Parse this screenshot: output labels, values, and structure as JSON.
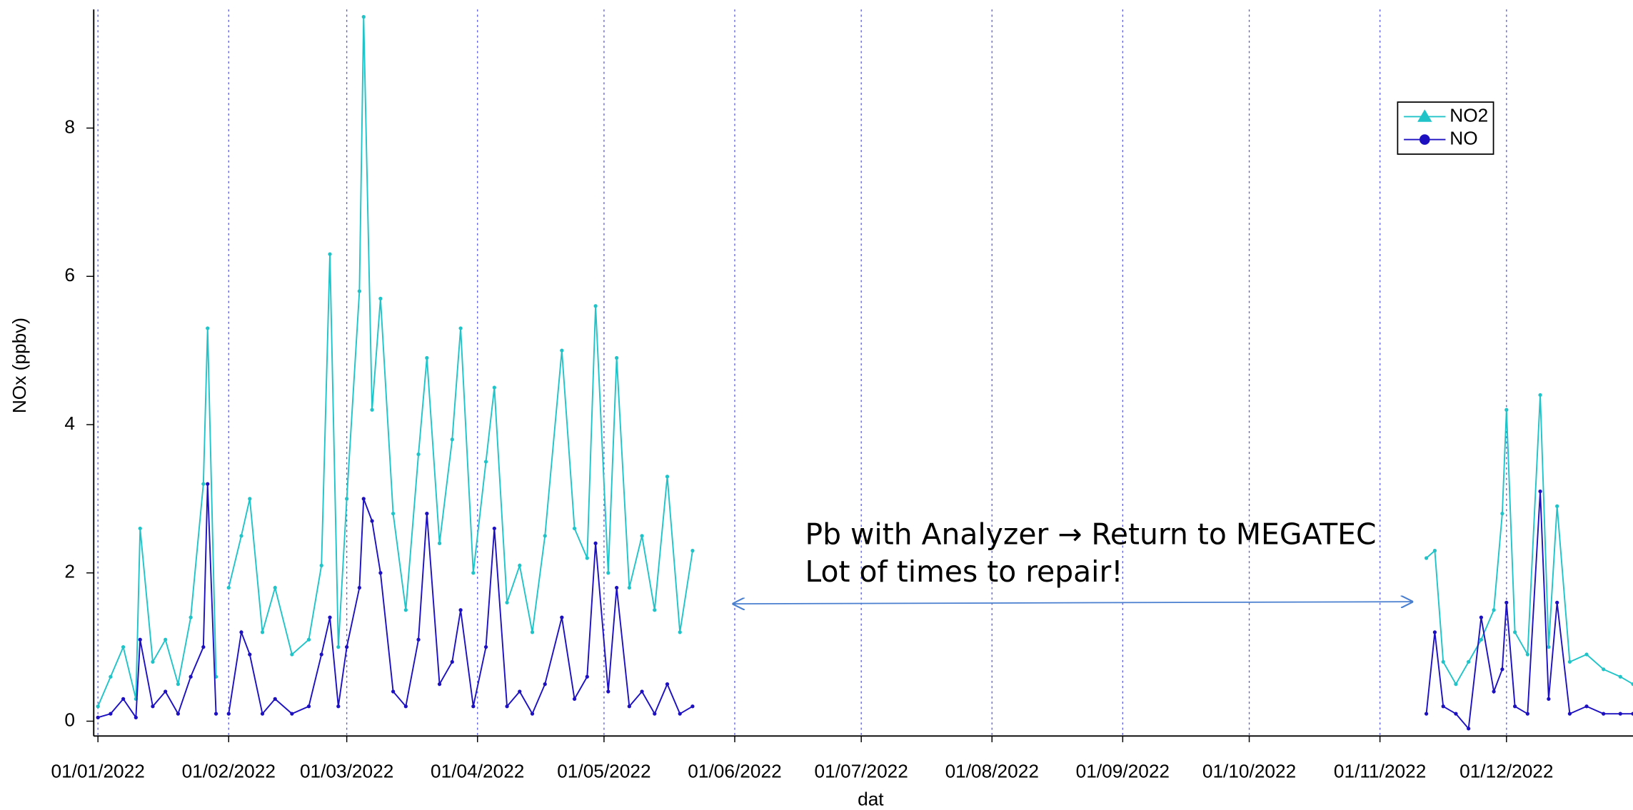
{
  "chart_data": {
    "type": "line",
    "xlabel": "dat",
    "ylabel": "NOx (ppbv)",
    "annotations": [
      "Pb with Analyzer → Return to MEGATEC",
      "Lot of times to repair!"
    ],
    "x": [
      "2022-01-01",
      "2022-01-04",
      "2022-01-07",
      "2022-01-10",
      "2022-01-11",
      "2022-01-14",
      "2022-01-17",
      "2022-01-20",
      "2022-01-23",
      "2022-01-26",
      "2022-01-27",
      "2022-01-29",
      "2022-01-31",
      "2022-02-01",
      "2022-02-04",
      "2022-02-06",
      "2022-02-09",
      "2022-02-12",
      "2022-02-16",
      "2022-02-20",
      "2022-02-23",
      "2022-02-25",
      "2022-02-27",
      "2022-03-01",
      "2022-03-04",
      "2022-03-05",
      "2022-03-07",
      "2022-03-09",
      "2022-03-12",
      "2022-03-15",
      "2022-03-18",
      "2022-03-20",
      "2022-03-23",
      "2022-03-26",
      "2022-03-28",
      "2022-03-31",
      "2022-04-03",
      "2022-04-05",
      "2022-04-08",
      "2022-04-11",
      "2022-04-14",
      "2022-04-17",
      "2022-04-21",
      "2022-04-24",
      "2022-04-27",
      "2022-04-29",
      "2022-05-02",
      "2022-05-04",
      "2022-05-07",
      "2022-05-10",
      "2022-05-13",
      "2022-05-16",
      "2022-05-19",
      "2022-05-22",
      "2022-05-23",
      "2022-11-12",
      "2022-11-14",
      "2022-11-16",
      "2022-11-19",
      "2022-11-22",
      "2022-11-25",
      "2022-11-28",
      "2022-11-30",
      "2022-12-01",
      "2022-12-03",
      "2022-12-06",
      "2022-12-09",
      "2022-12-11",
      "2022-12-13",
      "2022-12-16",
      "2022-12-20",
      "2022-12-24",
      "2022-12-28",
      "2022-12-31"
    ],
    "series": [
      {
        "name": "NO2",
        "color": "#20c4c8",
        "marker": "triangle",
        "values": [
          0.2,
          0.6,
          1.0,
          0.3,
          2.6,
          0.8,
          1.1,
          0.5,
          1.4,
          3.2,
          5.3,
          0.6,
          null,
          1.8,
          2.5,
          3.0,
          1.2,
          1.8,
          0.9,
          1.1,
          2.1,
          6.3,
          1.0,
          3.0,
          5.8,
          9.5,
          4.2,
          5.7,
          2.8,
          1.5,
          3.6,
          4.9,
          2.4,
          3.8,
          5.3,
          2.0,
          3.5,
          4.5,
          1.6,
          2.1,
          1.2,
          2.5,
          5.0,
          2.6,
          2.2,
          5.6,
          2.0,
          4.9,
          1.8,
          2.5,
          1.5,
          3.3,
          1.2,
          2.3,
          null,
          2.2,
          2.3,
          0.8,
          0.5,
          0.8,
          1.1,
          1.5,
          2.8,
          4.2,
          1.2,
          0.9,
          4.4,
          1.0,
          2.9,
          0.8,
          0.9,
          0.7,
          0.6,
          0.5
        ]
      },
      {
        "name": "NO",
        "color": "#1c10c0",
        "marker": "circle",
        "values": [
          0.05,
          0.1,
          0.3,
          0.05,
          1.1,
          0.2,
          0.4,
          0.1,
          0.6,
          1.0,
          3.2,
          0.1,
          null,
          0.1,
          1.2,
          0.9,
          0.1,
          0.3,
          0.1,
          0.2,
          0.9,
          1.4,
          0.2,
          1.0,
          1.8,
          3.0,
          2.7,
          2.0,
          0.4,
          0.2,
          1.1,
          2.8,
          0.5,
          0.8,
          1.5,
          0.2,
          1.0,
          2.6,
          0.2,
          0.4,
          0.1,
          0.5,
          1.4,
          0.3,
          0.6,
          2.4,
          0.4,
          1.8,
          0.2,
          0.4,
          0.1,
          0.5,
          0.1,
          0.2,
          null,
          0.1,
          1.2,
          0.2,
          0.1,
          -0.1,
          1.4,
          0.4,
          0.7,
          1.6,
          0.2,
          0.1,
          3.1,
          0.3,
          1.6,
          0.1,
          0.2,
          0.1,
          0.1,
          0.1
        ]
      }
    ],
    "xlim": [
      "2021-12-31",
      "2022-12-31"
    ],
    "xticks": [
      {
        "value": "2022-01-01",
        "label": "01/01/2022"
      },
      {
        "value": "2022-02-01",
        "label": "01/02/2022"
      },
      {
        "value": "2022-03-01",
        "label": "01/03/2022"
      },
      {
        "value": "2022-04-01",
        "label": "01/04/2022"
      },
      {
        "value": "2022-05-01",
        "label": "01/05/2022"
      },
      {
        "value": "2022-06-01",
        "label": "01/06/2022"
      },
      {
        "value": "2022-07-01",
        "label": "01/07/2022"
      },
      {
        "value": "2022-08-01",
        "label": "01/08/2022"
      },
      {
        "value": "2022-09-01",
        "label": "01/09/2022"
      },
      {
        "value": "2022-10-01",
        "label": "01/10/2022"
      },
      {
        "value": "2022-11-01",
        "label": "01/11/2022"
      },
      {
        "value": "2022-12-01",
        "label": "01/12/2022"
      }
    ],
    "ylim": [
      -0.2,
      9.6
    ],
    "yticks": [
      0,
      2,
      4,
      6,
      8
    ],
    "grid": "x",
    "legend": "upper right"
  }
}
